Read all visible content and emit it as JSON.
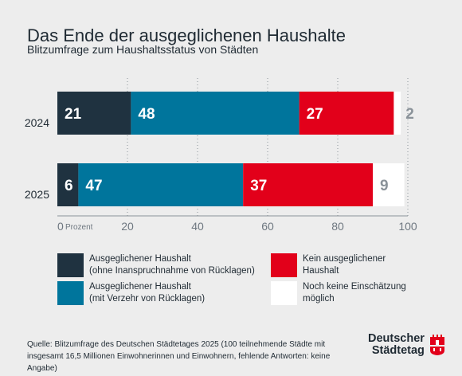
{
  "title": "Das Ende der ausgeglichenen Haushalte",
  "subtitle": "Blitzumfrage zum Haushaltsstatus von Städten",
  "chart_data": {
    "type": "bar",
    "orientation": "horizontal",
    "stacked": true,
    "categories": [
      "2024",
      "2025"
    ],
    "series": [
      {
        "name": "Ausgeglichener Haushalt (ohne Inanspruchnahme von Rücklagen)",
        "values": [
          21,
          6
        ],
        "color": "#1f3240"
      },
      {
        "name": "Ausgeglichener Haushalt (mit Verzehr von Rücklagen)",
        "values": [
          48,
          47
        ],
        "color": "#00759c"
      },
      {
        "name": "Kein ausgeglichener Haushalt",
        "values": [
          27,
          37
        ],
        "color": "#e2001a"
      },
      {
        "name": "Noch keine Einschätzung möglich",
        "values": [
          2,
          9
        ],
        "color": "#ffffff"
      }
    ],
    "xlim": [
      0,
      100
    ],
    "xticks": [
      "0",
      "20",
      "40",
      "60",
      "80",
      "100"
    ],
    "xunit_label": "Prozent",
    "grid": "vertical dotted"
  },
  "legend": [
    {
      "line1": "Ausgeglichener Haushalt",
      "line2": "(ohne Inanspruchnahme von Rücklagen)",
      "color": "#1f3240"
    },
    {
      "line1": "Kein ausgeglichener",
      "line2": "Haushalt",
      "color": "#e2001a"
    },
    {
      "line1": "Ausgeglichener Haushalt",
      "line2": "(mit Verzehr von Rücklagen)",
      "color": "#00759c"
    },
    {
      "line1": "Noch keine Einschätzung",
      "line2": "möglich",
      "color": "#ffffff"
    }
  ],
  "source": "Quelle: Blitzumfrage des Deutschen Städtetages 2025 (100 teilnehmende Städte mit insgesamt 16,5 Millionen Einwohnerinnen und Einwohnern, fehlende Antworten: keine Angabe)",
  "logo": {
    "line1": "Deutscher",
    "line2": "Städtetag",
    "icon": "city-crest-icon",
    "color": "#e2001a"
  }
}
